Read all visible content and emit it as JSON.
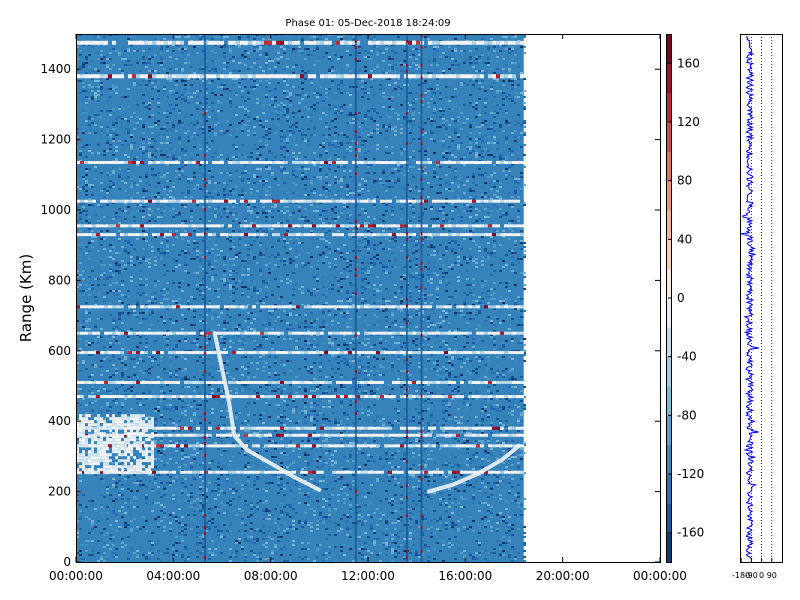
{
  "chart_data": [
    {
      "type": "heatmap",
      "title": "Phase 01: 05-Dec-2018 18:24:09",
      "xlabel": "",
      "ylabel": "Range (Km)",
      "x_ticks": [
        "00:00:00",
        "04:00:00",
        "08:00:00",
        "12:00:00",
        "16:00:00",
        "20:00:00",
        "00:00:00"
      ],
      "x_tick_hours": [
        0,
        4,
        8,
        12,
        16,
        20,
        24
      ],
      "y_ticks": [
        0,
        200,
        400,
        600,
        800,
        1000,
        1200,
        1400
      ],
      "xlim_hours": [
        0,
        24
      ],
      "ylim": [
        0,
        1500
      ],
      "data_extent_hours": [
        0,
        18.4
      ],
      "grid": false,
      "colormap": "RdBu_r",
      "colorbar": {
        "ticks": [
          160,
          120,
          80,
          40,
          0,
          -40,
          -80,
          -120,
          -160
        ],
        "range": [
          -180,
          180
        ],
        "low_color": "#053061",
        "mid_color": "#f7f7f7",
        "high_color": "#67001f"
      },
      "features": {
        "dominant_value": -115,
        "bright_rows_km": [
          1380,
          1475,
          1135,
          1025,
          955,
          930,
          725,
          650,
          595,
          510,
          470,
          380,
          360,
          330,
          255
        ],
        "dark_columns_hours": [
          5.3,
          11.5,
          13.6,
          14.2
        ],
        "descending_trace": [
          [
            5.7,
            650
          ],
          [
            6.3,
            450
          ],
          [
            6.5,
            360
          ],
          [
            7.0,
            320
          ],
          [
            8.0,
            280
          ],
          [
            9.0,
            240
          ],
          [
            10.0,
            205
          ]
        ],
        "ascending_trace": [
          [
            14.5,
            200
          ],
          [
            15.5,
            220
          ],
          [
            16.5,
            250
          ],
          [
            17.5,
            290
          ],
          [
            18.2,
            330
          ]
        ],
        "near_zero_patch": {
          "x_hours": [
            0,
            3.2
          ],
          "y_km": [
            250,
            420
          ]
        }
      }
    },
    {
      "type": "line",
      "title": "",
      "xlabel": "",
      "ylabel": "",
      "x_ticks": [
        "-180",
        "-90",
        "0",
        "90"
      ],
      "x_tick_values": [
        -180,
        -90,
        0,
        90
      ],
      "xlim": [
        -190,
        180
      ],
      "ylim": [
        0,
        1500
      ],
      "grid": true,
      "grid_lines_x": [
        -90,
        0,
        90
      ],
      "line_color": "#0000ff",
      "series_center": -105,
      "series_spread": 30
    }
  ]
}
